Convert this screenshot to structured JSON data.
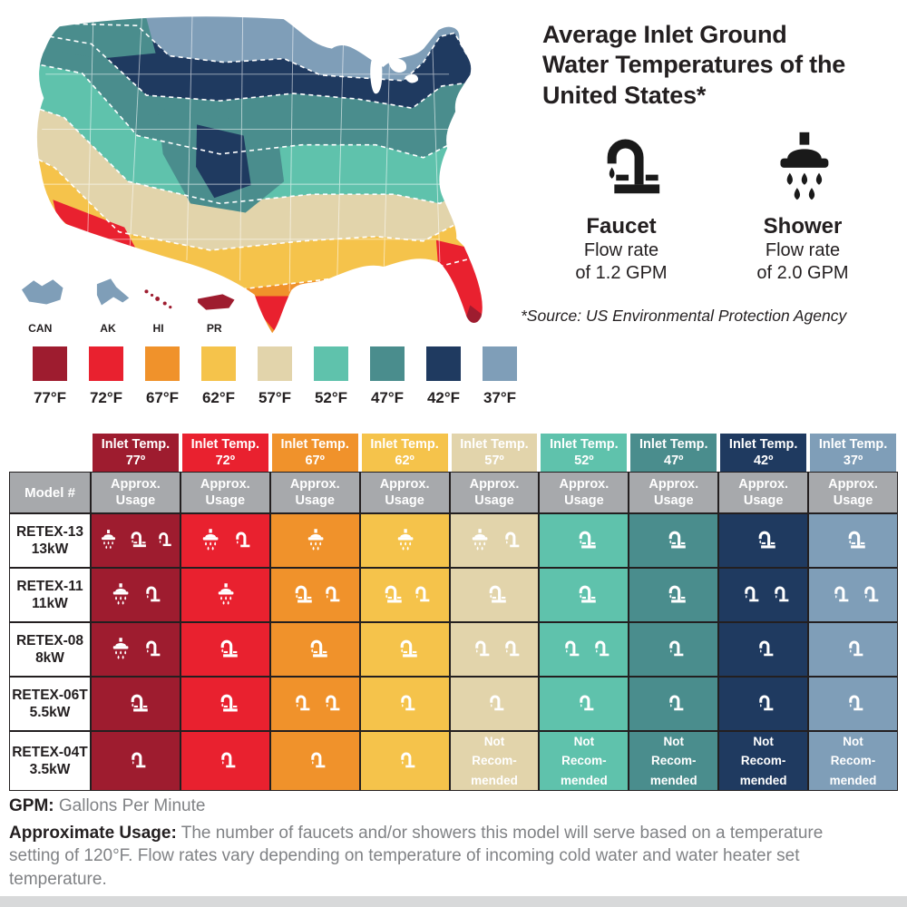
{
  "palette": {
    "77": "#9E1C2F",
    "72": "#E9212F",
    "67": "#F0922B",
    "62": "#F5C34B",
    "57": "#E2D4AB",
    "52": "#5FC2AC",
    "47": "#4A8D8D",
    "42": "#1F3A60",
    "37": "#7F9EB8"
  },
  "header": {
    "title": "Average Inlet Ground Water Temperatures of the United States*",
    "source": "*Source: US Environmental Protection Agency"
  },
  "fixtures": [
    {
      "icon": "faucet-icon",
      "name": "Faucet",
      "line1": "Flow rate",
      "line2": "of 1.2 GPM"
    },
    {
      "icon": "shower-icon",
      "name": "Shower",
      "line1": "Flow rate",
      "line2": "of 2.0 GPM"
    }
  ],
  "map": {
    "insets": [
      {
        "label": "CAN",
        "temp": "37"
      },
      {
        "label": "AK",
        "temp": "37"
      },
      {
        "label": "HI",
        "temp": "77"
      },
      {
        "label": "PR",
        "temp": "77"
      }
    ]
  },
  "legend": {
    "items": [
      {
        "label": "77°F",
        "temp": "77"
      },
      {
        "label": "72°F",
        "temp": "72"
      },
      {
        "label": "67°F",
        "temp": "67"
      },
      {
        "label": "62°F",
        "temp": "62"
      },
      {
        "label": "57°F",
        "temp": "57"
      },
      {
        "label": "52°F",
        "temp": "52"
      },
      {
        "label": "47°F",
        "temp": "47"
      },
      {
        "label": "42°F",
        "temp": "42"
      },
      {
        "label": "37°F",
        "temp": "37"
      }
    ]
  },
  "table": {
    "model_header": "Model #",
    "col_header_line1": "Inlet Temp.",
    "usage_header_lines": [
      "Approx.",
      "Usage"
    ],
    "not_recommended_lines": [
      "Not",
      "Recom-",
      "mended"
    ],
    "columns": [
      {
        "temp_label": "77º",
        "temp": "77"
      },
      {
        "temp_label": "72º",
        "temp": "72"
      },
      {
        "temp_label": "67º",
        "temp": "67"
      },
      {
        "temp_label": "62º",
        "temp": "62"
      },
      {
        "temp_label": "57º",
        "temp": "57"
      },
      {
        "temp_label": "52º",
        "temp": "52"
      },
      {
        "temp_label": "47º",
        "temp": "47"
      },
      {
        "temp_label": "42º",
        "temp": "42"
      },
      {
        "temp_label": "37º",
        "temp": "37"
      }
    ],
    "rows": [
      {
        "model": "RETEX-13",
        "power": "13kW",
        "cells": [
          [
            "shower",
            "faucet",
            "tap"
          ],
          [
            "shower",
            "tap"
          ],
          [
            "shower"
          ],
          [
            "shower"
          ],
          [
            "shower",
            "tap"
          ],
          [
            "faucet"
          ],
          [
            "faucet"
          ],
          [
            "faucet"
          ],
          [
            "faucet"
          ]
        ]
      },
      {
        "model": "RETEX-11",
        "power": "11kW",
        "cells": [
          [
            "shower",
            "tap"
          ],
          [
            "shower"
          ],
          [
            "faucet",
            "tap"
          ],
          [
            "faucet",
            "tap"
          ],
          [
            "faucet"
          ],
          [
            "faucet"
          ],
          [
            "faucet"
          ],
          [
            "tap",
            "tap"
          ],
          [
            "tap",
            "tap"
          ]
        ]
      },
      {
        "model": "RETEX-08",
        "power": "8kW",
        "cells": [
          [
            "shower",
            "tap"
          ],
          [
            "faucet"
          ],
          [
            "faucet"
          ],
          [
            "faucet"
          ],
          [
            "tap",
            "tap"
          ],
          [
            "tap",
            "tap"
          ],
          [
            "tap"
          ],
          [
            "tap"
          ],
          [
            "tap"
          ]
        ]
      },
      {
        "model": "RETEX-06T",
        "power": "5.5kW",
        "cells": [
          [
            "faucet"
          ],
          [
            "faucet"
          ],
          [
            "tap",
            "tap"
          ],
          [
            "tap"
          ],
          [
            "tap"
          ],
          [
            "tap"
          ],
          [
            "tap"
          ],
          [
            "tap"
          ],
          [
            "tap"
          ]
        ]
      },
      {
        "model": "RETEX-04T",
        "power": "3.5kW",
        "cells": [
          [
            "tap"
          ],
          [
            "tap"
          ],
          [
            "tap"
          ],
          [
            "tap"
          ],
          "NR",
          "NR",
          "NR",
          "NR",
          "NR"
        ]
      }
    ]
  },
  "footnotes": {
    "gpm_bold": "GPM:",
    "gpm_rest": " Gallons Per Minute",
    "usage_bold": "Approximate Usage:",
    "usage_rest": " The number of faucets and/or showers this model will serve based on a temperature setting of 120°F. Flow rates vary depending on temperature of incoming cold water and water heater set temperature."
  }
}
